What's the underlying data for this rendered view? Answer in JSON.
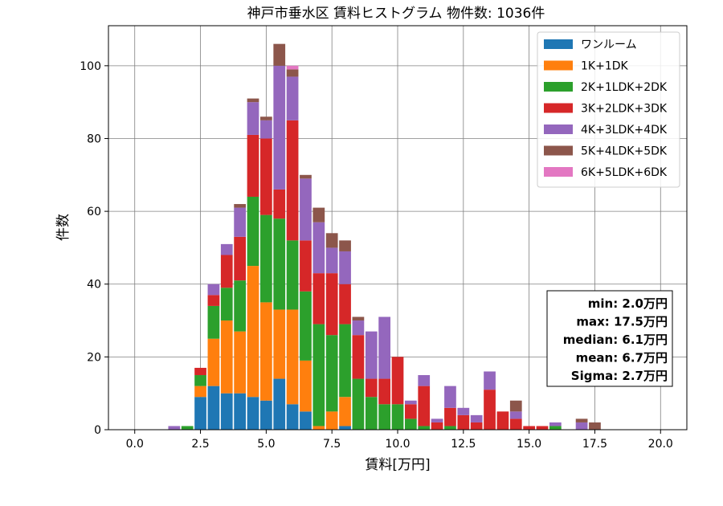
{
  "chart_data": {
    "type": "bar",
    "stacked": true,
    "title": "神戸市垂水区 賃料ヒストグラム 物件数: 1036件",
    "xlabel": "賃料[万円]",
    "ylabel": "件数",
    "xlim": [
      -1.0,
      21.0
    ],
    "ylim": [
      0,
      111
    ],
    "xticks": [
      0.0,
      2.5,
      5.0,
      7.5,
      10.0,
      12.5,
      15.0,
      17.5,
      20.0
    ],
    "xtick_labels": [
      "0.0",
      "2.5",
      "5.0",
      "7.5",
      "10.0",
      "12.5",
      "15.0",
      "17.5",
      "20.0"
    ],
    "yticks": [
      0,
      20,
      40,
      60,
      80,
      100
    ],
    "ytick_labels": [
      "0",
      "20",
      "40",
      "60",
      "80",
      "100"
    ],
    "grid": true,
    "legend_position": "top-right",
    "bin_width": 0.5,
    "x": [
      1.5,
      2.0,
      2.5,
      3.0,
      3.5,
      4.0,
      4.5,
      5.0,
      5.5,
      6.0,
      6.5,
      7.0,
      7.5,
      8.0,
      8.5,
      9.0,
      9.5,
      10.0,
      10.5,
      11.0,
      11.5,
      12.0,
      12.5,
      13.0,
      13.5,
      14.0,
      14.5,
      15.0,
      15.5,
      16.0,
      16.5,
      17.0,
      17.5
    ],
    "series": [
      {
        "name": "ワンルーム",
        "color": "#1f77b4",
        "values": [
          0,
          0,
          9,
          12,
          10,
          10,
          9,
          8,
          14,
          7,
          5,
          0,
          0,
          1,
          0,
          0,
          0,
          0,
          0,
          0,
          0,
          0,
          0,
          0,
          0,
          0,
          0,
          0,
          0,
          0,
          0,
          0,
          0
        ]
      },
      {
        "name": "1K+1DK",
        "color": "#ff7f0e",
        "values": [
          0,
          0,
          3,
          13,
          20,
          17,
          36,
          27,
          19,
          26,
          14,
          1,
          5,
          8,
          0,
          0,
          0,
          0,
          0,
          0,
          0,
          0,
          0,
          0,
          0,
          0,
          0,
          0,
          0,
          0,
          0,
          0,
          0
        ]
      },
      {
        "name": "2K+1LDK+2DK",
        "color": "#2ca02c",
        "values": [
          0,
          1,
          3,
          9,
          9,
          14,
          19,
          24,
          25,
          19,
          19,
          28,
          21,
          20,
          14,
          9,
          7,
          7,
          3,
          1,
          0,
          1,
          0,
          0,
          0,
          0,
          0,
          0,
          0,
          1,
          0,
          0,
          0
        ]
      },
      {
        "name": "3K+2LDK+3DK",
        "color": "#d62728",
        "values": [
          0,
          0,
          2,
          3,
          9,
          12,
          17,
          21,
          8,
          33,
          14,
          14,
          17,
          11,
          12,
          5,
          7,
          13,
          4,
          11,
          2,
          5,
          4,
          2,
          11,
          5,
          3,
          1,
          1,
          0,
          0,
          0,
          0
        ]
      },
      {
        "name": "4K+3LDK+4DK",
        "color": "#9467bd",
        "values": [
          1,
          0,
          0,
          3,
          3,
          8,
          9,
          5,
          34,
          12,
          17,
          14,
          7,
          9,
          4,
          13,
          17,
          0,
          1,
          3,
          1,
          6,
          2,
          2,
          5,
          0,
          2,
          0,
          0,
          1,
          0,
          2,
          0
        ]
      },
      {
        "name": "5K+4LDK+5DK",
        "color": "#8c564b",
        "values": [
          0,
          0,
          0,
          0,
          0,
          1,
          1,
          1,
          6,
          2,
          1,
          4,
          4,
          3,
          1,
          0,
          0,
          0,
          0,
          0,
          0,
          0,
          0,
          0,
          0,
          0,
          3,
          0,
          0,
          0,
          0,
          1,
          2
        ]
      },
      {
        "name": "6K+5LDK+6DK",
        "color": "#e377c2",
        "values": [
          0,
          0,
          0,
          0,
          0,
          0,
          0,
          0,
          0,
          1,
          0,
          0,
          0,
          0,
          0,
          0,
          0,
          0,
          0,
          0,
          0,
          0,
          0,
          0,
          0,
          0,
          0,
          0,
          0,
          0,
          0,
          0,
          0
        ]
      }
    ],
    "stats": [
      "min: 2.0万円",
      "max: 17.5万円",
      "median: 6.1万円",
      "mean: 6.7万円",
      "Sigma: 2.7万円"
    ]
  }
}
